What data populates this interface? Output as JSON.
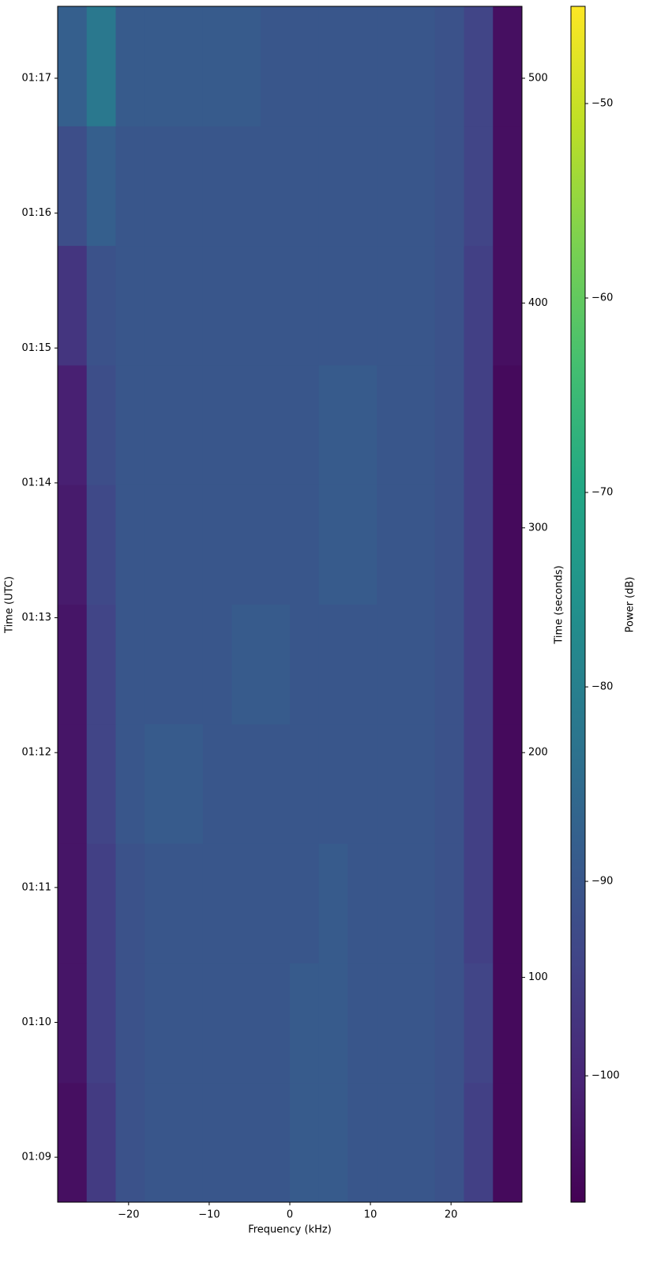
{
  "chart_data": {
    "type": "heatmap",
    "x_label": "Frequency (kHz)",
    "y_label": "Time (UTC)",
    "y2_label": "Time (seconds)",
    "colorbar_label": "Power (dB)",
    "colormap": "viridis",
    "xlim": [
      -28.8,
      28.8
    ],
    "xticks": [
      {
        "value": -20,
        "label": "−20"
      },
      {
        "value": -10,
        "label": "−10"
      },
      0,
      10,
      20
    ],
    "ylim": [
      0,
      532
    ],
    "yticks": [
      {
        "value": 20,
        "label": "01:09"
      },
      {
        "value": 80,
        "label": "01:10"
      },
      {
        "value": 140,
        "label": "01:11"
      },
      {
        "value": 200,
        "label": "01:12"
      },
      {
        "value": 260,
        "label": "01:13"
      },
      {
        "value": 320,
        "label": "01:14"
      },
      {
        "value": 380,
        "label": "01:15"
      },
      {
        "value": 440,
        "label": "01:16"
      },
      {
        "value": 500,
        "label": "01:17"
      }
    ],
    "y2lim": [
      0,
      532
    ],
    "y2ticks": [
      100,
      200,
      300,
      400,
      500
    ],
    "clim": [
      -106.5,
      -45
    ],
    "cticks": [
      {
        "value": -50,
        "label": "−50"
      },
      {
        "value": -60,
        "label": "−60"
      },
      {
        "value": -70,
        "label": "−70"
      },
      {
        "value": -80,
        "label": "−80"
      },
      {
        "value": -90,
        "label": "−90"
      },
      {
        "value": -100,
        "label": "−100"
      }
    ],
    "x_bins": [
      -28.8,
      -25.2,
      -21.6,
      -18,
      -14.4,
      -10.8,
      -7.2,
      -3.6,
      0,
      3.6,
      7.2,
      10.8,
      14.4,
      18,
      21.6,
      25.2,
      28.8
    ],
    "y_bins": [
      0,
      53.2,
      106.4,
      159.6,
      212.8,
      266,
      319.2,
      372.4,
      425.6,
      478.8,
      532
    ],
    "z": [
      [
        -104,
        -96,
        -91,
        -90,
        -90,
        -90,
        -90,
        -90,
        -89,
        -89,
        -90,
        -90,
        -90,
        -91,
        -95,
        -105
      ],
      [
        -103,
        -95,
        -91,
        -90,
        -90,
        -90,
        -90,
        -90,
        -89,
        -89,
        -90,
        -90,
        -90,
        -91,
        -94,
        -105
      ],
      [
        -103,
        -95,
        -91,
        -90,
        -90,
        -90,
        -90,
        -90,
        -90,
        -89,
        -90,
        -90,
        -90,
        -91,
        -95,
        -105
      ],
      [
        -103,
        -94,
        -90,
        -89,
        -89,
        -90,
        -90,
        -90,
        -90,
        -90,
        -90,
        -90,
        -90,
        -91,
        -95,
        -105
      ],
      [
        -103,
        -94,
        -90,
        -90,
        -90,
        -90,
        -89,
        -89,
        -90,
        -90,
        -90,
        -90,
        -90,
        -91,
        -95,
        -105
      ],
      [
        -102,
        -93,
        -90,
        -90,
        -90,
        -90,
        -90,
        -90,
        -90,
        -89,
        -89,
        -90,
        -90,
        -91,
        -95,
        -105
      ],
      [
        -101,
        -92,
        -90,
        -90,
        -90,
        -90,
        -90,
        -90,
        -90,
        -89,
        -89,
        -90,
        -90,
        -91,
        -95,
        -105
      ],
      [
        -97,
        -91,
        -90,
        -90,
        -90,
        -90,
        -90,
        -90,
        -90,
        -90,
        -90,
        -90,
        -90,
        -91,
        -95,
        -104
      ],
      [
        -92,
        -88,
        -90,
        -90,
        -90,
        -90,
        -90,
        -90,
        -90,
        -90,
        -90,
        -90,
        -90,
        -91,
        -94,
        -104
      ],
      [
        -88,
        -82,
        -89,
        -89,
        -89,
        -89,
        -89,
        -90,
        -90,
        -90,
        -90,
        -90,
        -90,
        -91,
        -94,
        -104
      ]
    ]
  }
}
